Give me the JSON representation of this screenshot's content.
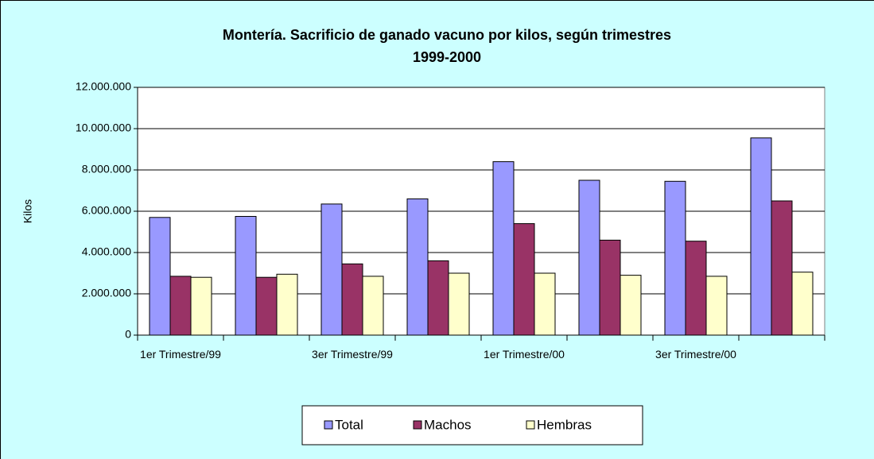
{
  "chart_data": {
    "type": "bar",
    "title": "Montería. Sacrificio de ganado vacuno por kilos, según trimestres",
    "subtitle": "1999-2000",
    "y_label": "Kilos",
    "categories": [
      "1er Trimestre/99",
      null,
      "3er Trimestre/99",
      null,
      "1er Trimestre/00",
      null,
      "3er Trimestre/00",
      null
    ],
    "series": [
      {
        "name": "Total",
        "color": "#9999ff",
        "values": [
          5700000,
          5750000,
          6350000,
          6600000,
          8400000,
          7500000,
          7450000,
          9550000
        ]
      },
      {
        "name": "Machos",
        "color": "#993366",
        "values": [
          2850000,
          2800000,
          3450000,
          3600000,
          5400000,
          4600000,
          4550000,
          6500000
        ]
      },
      {
        "name": "Hembras",
        "color": "#ffffcc",
        "values": [
          2800000,
          2950000,
          2850000,
          3000000,
          3000000,
          2900000,
          2850000,
          3050000
        ]
      }
    ],
    "ylim": [
      0,
      12000000
    ],
    "yticks": [
      0,
      {
        "value": 2000000,
        "label": "2.000.000"
      },
      {
        "value": 4000000,
        "label": "4.000.000"
      },
      {
        "value": 6000000,
        "label": "6.000.000"
      },
      {
        "value": 8000000,
        "label": "8.000.000"
      },
      {
        "value": 10000000,
        "label": "10.000.000"
      },
      {
        "value": 12000000,
        "label": "12.000.000"
      }
    ],
    "grid": true,
    "legend": "bottom"
  }
}
